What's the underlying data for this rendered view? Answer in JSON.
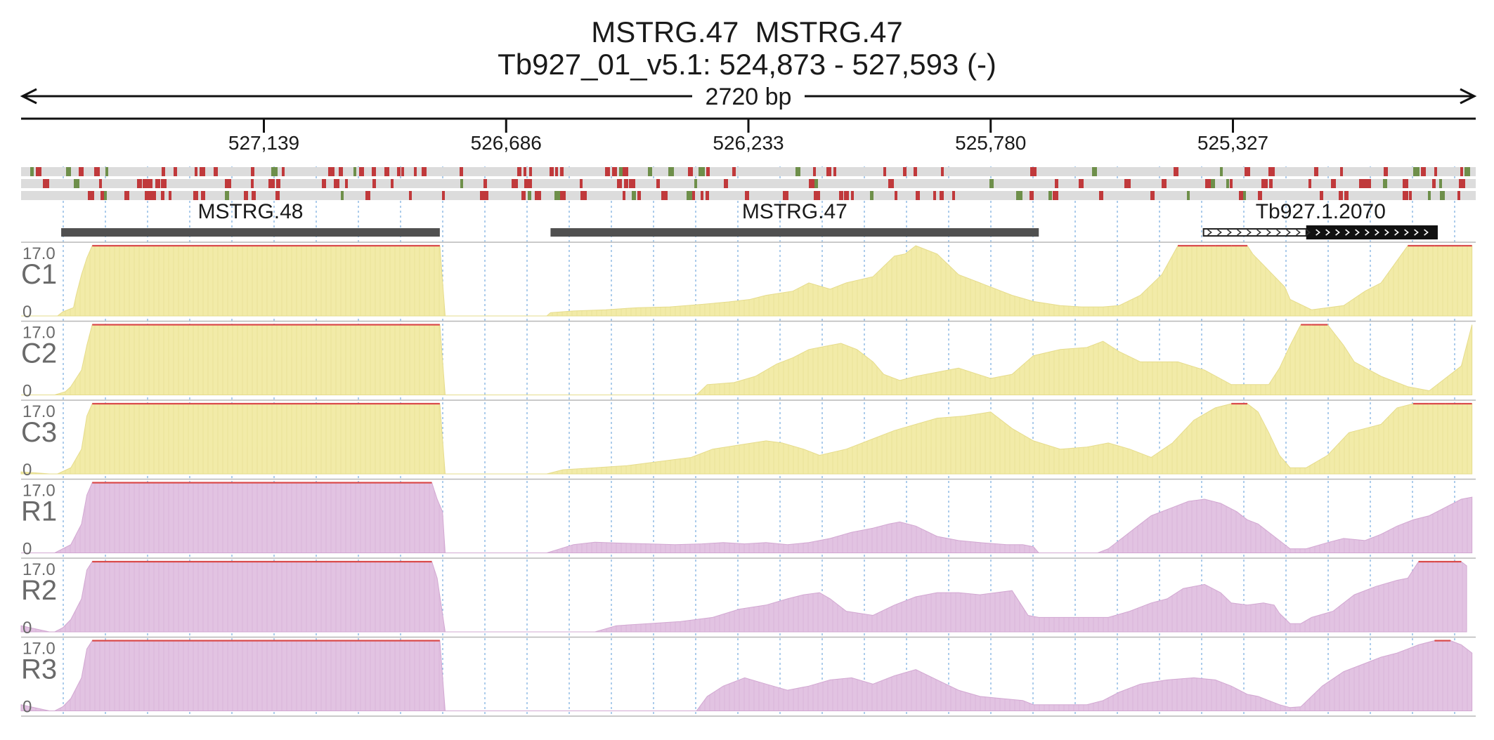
{
  "header": {
    "title": "MSTRG.47  MSTRG.47",
    "locus": "Tb927_01_v5.1: 524,873 - 527,593 (-)",
    "span_label": "2720 bp"
  },
  "colors": {
    "axis": "#111111",
    "gridline": "#7fb0e0",
    "variant_row_bg": "#dcdcdc",
    "variant_red": "#c0393b",
    "variant_green": "#6e8f4a",
    "gene_bar": "#505050",
    "gene_bar_black": "#111111",
    "coverage_c_fill": "#f2eba8",
    "coverage_c_stroke": "#e6dc8c",
    "coverage_r_fill": "#e2c3e2",
    "coverage_r_stroke": "#d2a8d2",
    "clip_line": "#d94a4a",
    "track_label": "#6a6a6a",
    "separator": "#b8b8b8"
  },
  "chart_data": {
    "type": "area",
    "x_axis": {
      "start": 527593,
      "end": 524873,
      "strand": "-",
      "tick_values": [
        527139,
        526686,
        526233,
        525780,
        525327
      ],
      "tick_labels": [
        "527,139",
        "526,686",
        "526,233",
        "525,780",
        "525,327"
      ],
      "gridlines": true
    },
    "variant_rows": 3,
    "genes": [
      {
        "name": "MSTRG.48",
        "start": 527518,
        "end": 526810,
        "style": "solid"
      },
      {
        "name": "MSTRG.47",
        "start": 526603,
        "end": 525690,
        "style": "solid"
      },
      {
        "name": "Tb927.1.2070",
        "start": 525382,
        "end": 524944,
        "style": "arrows",
        "cds_start": 525190
      }
    ],
    "ylim": [
      0,
      17.0
    ],
    "ymax_label": "17.0",
    "ymin_label": "0",
    "series": [
      {
        "name": "C1",
        "group": "C",
        "x": [
          527593,
          527525,
          527515,
          527495,
          527490,
          527480,
          527470,
          527460,
          526810,
          526800,
          526610,
          526603,
          526560,
          526500,
          526440,
          526380,
          526320,
          526270,
          526230,
          526200,
          526150,
          526120,
          526080,
          526050,
          526000,
          525980,
          525960,
          525940,
          525920,
          525880,
          525840,
          525800,
          525740,
          525700,
          525650,
          525610,
          525570,
          525540,
          525500,
          525460,
          525430,
          525380,
          525360,
          525330,
          525300,
          525290,
          525260,
          525230,
          525220,
          525180,
          525150,
          525120,
          525080,
          525050,
          525000,
          524950,
          524900,
          524880
        ],
        "y": [
          0,
          0,
          1.0,
          2.0,
          5.0,
          10.0,
          14.0,
          17.0,
          17.0,
          0,
          0,
          0.8,
          1.2,
          1.5,
          2.0,
          2.2,
          2.8,
          3.4,
          4.0,
          5.0,
          6.0,
          8.0,
          6.5,
          8.0,
          9.5,
          12.0,
          14.5,
          15.0,
          17.0,
          15.0,
          10.0,
          8.0,
          5.0,
          3.5,
          2.5,
          2.2,
          2.2,
          2.5,
          5.0,
          10.0,
          17.0,
          17.0,
          17.0,
          17.0,
          17.0,
          15.0,
          11.0,
          7.0,
          4.0,
          1.5,
          2.0,
          2.5,
          6.0,
          8.0,
          17.0,
          17.0,
          17.0,
          17.0
        ]
      },
      {
        "name": "C2",
        "group": "C",
        "x": [
          527593,
          527530,
          527510,
          527500,
          527480,
          527470,
          527460,
          526810,
          526800,
          526610,
          526330,
          526310,
          526260,
          526220,
          526180,
          526150,
          526120,
          526080,
          526060,
          526030,
          526000,
          525980,
          525950,
          525920,
          525880,
          525840,
          525780,
          525740,
          525700,
          525650,
          525600,
          525570,
          525540,
          525500,
          525460,
          525430,
          525380,
          525330,
          525300,
          525290,
          525260,
          525240,
          525220,
          525200,
          525180,
          525150,
          525120,
          525100,
          525050,
          525000,
          524960,
          524900,
          524880
        ],
        "y": [
          0,
          0,
          0.8,
          2.0,
          6.0,
          12.0,
          17.0,
          17.0,
          0,
          0,
          0,
          2.5,
          3.0,
          4.5,
          7.5,
          9.0,
          11.0,
          12.0,
          12.5,
          11.0,
          8.0,
          5.0,
          3.5,
          4.5,
          5.5,
          6.5,
          4.0,
          5.0,
          9.5,
          11.0,
          11.5,
          13.0,
          10.5,
          8.0,
          8.0,
          8.0,
          6.0,
          2.5,
          2.5,
          2.5,
          2.5,
          6.5,
          12.0,
          17.0,
          17.0,
          17.0,
          12.0,
          8.0,
          4.5,
          2.0,
          1.0,
          7.0,
          17.0
        ]
      },
      {
        "name": "C3",
        "group": "C",
        "x": [
          527593,
          527570,
          527540,
          527525,
          527500,
          527480,
          527470,
          527460,
          526810,
          526800,
          526610,
          526580,
          526520,
          526460,
          526400,
          526340,
          526300,
          526250,
          526200,
          526170,
          526130,
          526100,
          526050,
          526000,
          525960,
          525920,
          525880,
          525830,
          525780,
          525740,
          525700,
          525650,
          525600,
          525560,
          525520,
          525480,
          525440,
          525400,
          525360,
          525330,
          525300,
          525280,
          525260,
          525240,
          525220,
          525190,
          525150,
          525110,
          525080,
          525050,
          525020,
          524990,
          524960,
          524930,
          524900,
          524880
        ],
        "y": [
          0.5,
          0.3,
          0,
          0,
          1.5,
          6.0,
          14.0,
          17.0,
          17.0,
          0,
          0,
          1.0,
          1.5,
          2.0,
          3.0,
          4.0,
          6.0,
          7.0,
          8.0,
          7.5,
          6.0,
          4.5,
          6.0,
          8.5,
          10.5,
          12.0,
          13.5,
          14.0,
          15.0,
          11.0,
          8.0,
          6.0,
          6.5,
          7.5,
          6.0,
          4.0,
          7.5,
          13.0,
          16.0,
          17.0,
          17.0,
          15.0,
          10.0,
          4.5,
          1.5,
          1.5,
          4.5,
          10.0,
          11.0,
          12.0,
          16.0,
          17.0,
          17.0,
          17.0,
          17.0,
          17.0
        ]
      },
      {
        "name": "R1",
        "group": "R",
        "x": [
          527593,
          527530,
          527515,
          527500,
          527480,
          527470,
          527460,
          526825,
          526815,
          526805,
          526800,
          526610,
          526590,
          526560,
          526520,
          526480,
          526420,
          526370,
          526320,
          526280,
          526240,
          526200,
          526160,
          526120,
          526080,
          526040,
          526000,
          525970,
          525950,
          525920,
          525880,
          525840,
          525800,
          525750,
          525720,
          525700,
          525690,
          525580,
          525560,
          525540,
          525510,
          525480,
          525440,
          525410,
          525380,
          525350,
          525320,
          525300,
          525280,
          525260,
          525240,
          525220,
          525190,
          525150,
          525120,
          525080,
          525050,
          525020,
          524990,
          524960,
          524930,
          524900,
          524880
        ],
        "y": [
          0,
          0,
          1.0,
          2.0,
          7.0,
          14.0,
          17.0,
          17.0,
          13.0,
          10.0,
          0,
          0,
          0.8,
          2.0,
          2.6,
          2.4,
          2.2,
          2.0,
          2.2,
          2.5,
          2.2,
          2.5,
          2.0,
          2.5,
          3.5,
          5.0,
          6.0,
          7.0,
          7.5,
          6.5,
          4.0,
          3.0,
          2.5,
          2.0,
          2.0,
          1.5,
          0,
          0,
          1.0,
          3.0,
          6.0,
          9.0,
          11.0,
          12.5,
          13.0,
          12.0,
          10.0,
          8.0,
          7.0,
          5.0,
          3.0,
          1.0,
          1.0,
          2.5,
          3.5,
          3.0,
          4.5,
          6.5,
          8.0,
          9.0,
          11.0,
          13.0,
          13.5
        ]
      },
      {
        "name": "R2",
        "group": "R",
        "x": [
          527593,
          527540,
          527530,
          527515,
          527500,
          527480,
          527470,
          527460,
          526825,
          526815,
          526800,
          526610,
          526520,
          526480,
          526420,
          526360,
          526300,
          526250,
          526200,
          526160,
          526130,
          526100,
          526080,
          526050,
          526000,
          525960,
          525920,
          525880,
          525840,
          525800,
          525740,
          525720,
          525710,
          525690,
          525560,
          525520,
          525480,
          525450,
          525420,
          525380,
          525350,
          525330,
          525300,
          525270,
          525250,
          525240,
          525220,
          525200,
          525180,
          525140,
          525100,
          525060,
          525020,
          525000,
          524980,
          524950,
          524900,
          524890
        ],
        "y": [
          1.5,
          0,
          0,
          1.0,
          3.0,
          8.0,
          15.0,
          17.0,
          17.0,
          13.0,
          0,
          0,
          0,
          1.5,
          2.0,
          2.5,
          3.5,
          5.5,
          6.5,
          8.0,
          9.0,
          9.5,
          8.0,
          5.0,
          4.0,
          6.5,
          8.5,
          9.5,
          9.5,
          9.0,
          10.0,
          6.0,
          4.0,
          3.5,
          3.5,
          5.0,
          7.0,
          8.0,
          10.5,
          11.5,
          9.5,
          7.0,
          6.5,
          7.0,
          6.5,
          4.5,
          2.0,
          2.0,
          3.5,
          5.0,
          9.0,
          11.0,
          12.5,
          13.0,
          17.0,
          17.0,
          17.0,
          16.0
        ]
      },
      {
        "name": "R3",
        "group": "R",
        "x": [
          527593,
          527540,
          527530,
          527515,
          527500,
          527480,
          527470,
          527460,
          526810,
          526800,
          526330,
          526310,
          526280,
          526240,
          526200,
          526160,
          526120,
          526080,
          526040,
          526000,
          525960,
          525920,
          525880,
          525840,
          525800,
          525760,
          525720,
          525700,
          525690,
          525600,
          525570,
          525540,
          525500,
          525450,
          525400,
          525360,
          525330,
          525300,
          525280,
          525260,
          525240,
          525220,
          525200,
          525160,
          525120,
          525080,
          525050,
          525020,
          525000,
          524980,
          524950,
          524920,
          524900,
          524880
        ],
        "y": [
          1.5,
          0,
          0,
          1.0,
          3.0,
          8.0,
          15.0,
          17.0,
          17.0,
          0,
          0,
          3.5,
          6.0,
          8.0,
          6.5,
          5.0,
          6.0,
          7.5,
          8.0,
          6.5,
          8.5,
          10.0,
          7.5,
          5.0,
          3.5,
          3.0,
          2.5,
          1.5,
          1.5,
          1.5,
          2.5,
          4.5,
          6.5,
          7.5,
          8.0,
          7.5,
          6.0,
          4.0,
          3.5,
          2.5,
          1.5,
          0.8,
          1.0,
          6.0,
          9.5,
          11.5,
          13.0,
          14.0,
          15.0,
          16.0,
          17.0,
          17.0,
          16.0,
          14.0
        ]
      }
    ]
  }
}
